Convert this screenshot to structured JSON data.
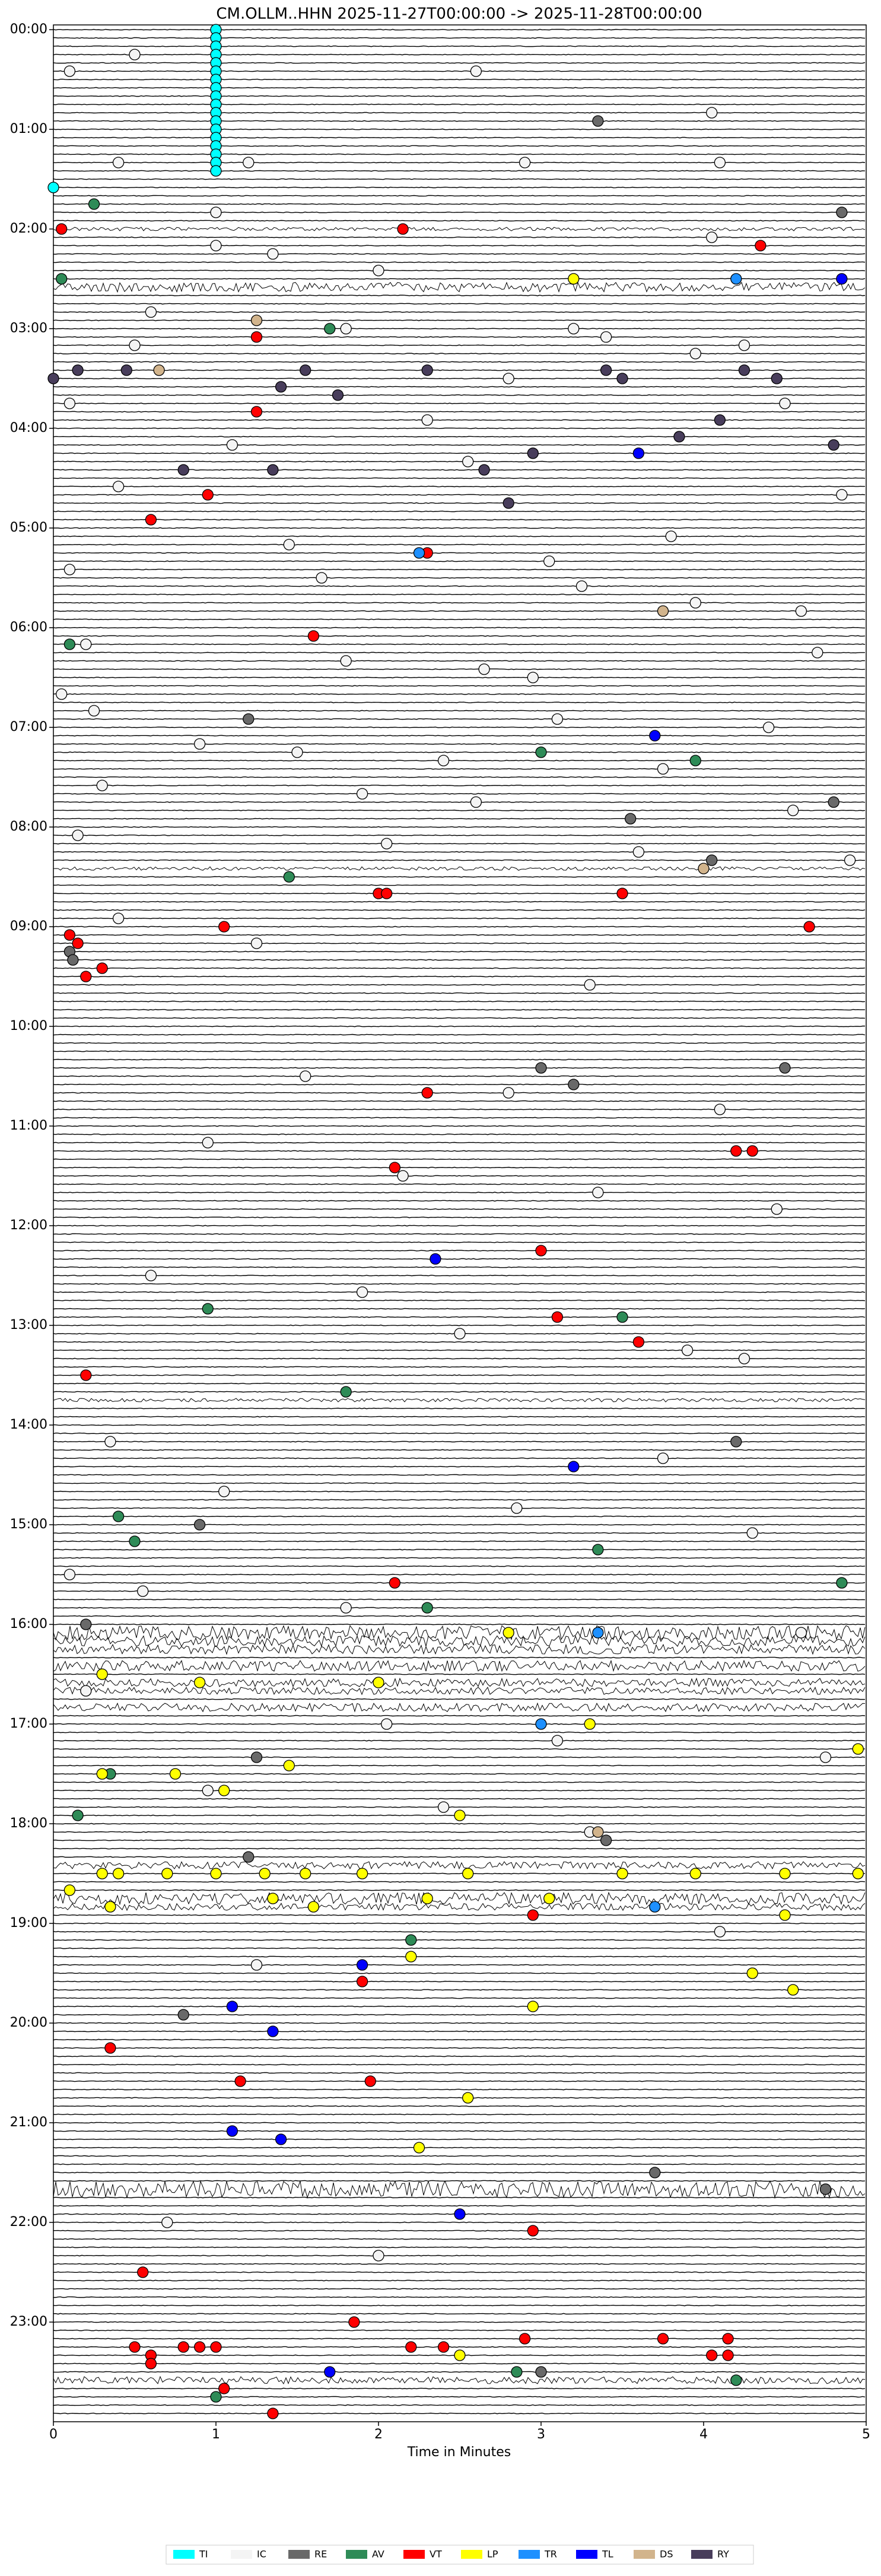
{
  "chart_data": {
    "type": "dayplot",
    "title": "CM.OLLM..HHN  2025-11-27T00:00:00 -> 2025-11-28T00:00:00",
    "xlabel": "Time in Minutes",
    "xlim": [
      0,
      5
    ],
    "xticks": [
      0,
      1,
      2,
      3,
      4,
      5
    ],
    "ylim": [
      0,
      288
    ],
    "yticks": [
      {
        "value": 0,
        "label": "00:00"
      },
      {
        "value": 12,
        "label": "01:00"
      },
      {
        "value": 24,
        "label": "02:00"
      },
      {
        "value": 36,
        "label": "03:00"
      },
      {
        "value": 48,
        "label": "04:00"
      },
      {
        "value": 60,
        "label": "05:00"
      },
      {
        "value": 72,
        "label": "06:00"
      },
      {
        "value": 84,
        "label": "07:00"
      },
      {
        "value": 96,
        "label": "08:00"
      },
      {
        "value": 108,
        "label": "09:00"
      },
      {
        "value": 120,
        "label": "10:00"
      },
      {
        "value": 132,
        "label": "11:00"
      },
      {
        "value": 144,
        "label": "12:00"
      },
      {
        "value": 156,
        "label": "13:00"
      },
      {
        "value": 168,
        "label": "14:00"
      },
      {
        "value": 180,
        "label": "15:00"
      },
      {
        "value": 192,
        "label": "16:00"
      },
      {
        "value": 204,
        "label": "17:00"
      },
      {
        "value": 216,
        "label": "18:00"
      },
      {
        "value": 228,
        "label": "19:00"
      },
      {
        "value": 240,
        "label": "20:00"
      },
      {
        "value": 252,
        "label": "21:00"
      },
      {
        "value": 264,
        "label": "22:00"
      },
      {
        "value": 276,
        "label": "23:00"
      }
    ],
    "series": [
      {
        "name": "TI",
        "color": "#00ffff",
        "x": [
          1,
          1,
          1,
          1,
          1,
          1,
          1,
          1,
          1,
          1,
          1,
          1,
          1,
          1,
          1,
          1,
          1,
          1,
          0
        ],
        "values": [
          0,
          1,
          2,
          3,
          4,
          5,
          6,
          7,
          8,
          9,
          10,
          11,
          12,
          13,
          14,
          15,
          16,
          17,
          19
        ]
      },
      {
        "name": "IC",
        "color": "#f4f4f4",
        "x": [
          0.5,
          0.1,
          2.6,
          4.05,
          0.4,
          1.2,
          2.9,
          4.1,
          1.0,
          4.05,
          1.0,
          1.35,
          2.0,
          0.6,
          3.2,
          3.4,
          1.8,
          0.5,
          4.25,
          3.95,
          2.8,
          0.1,
          4.5,
          2.3,
          1.1,
          2.55,
          0.4,
          4.85,
          3.8,
          1.45,
          3.05,
          0.1,
          1.65,
          3.25,
          3.95,
          4.6,
          0.2,
          1.8,
          2.65,
          2.95,
          4.7,
          0.05,
          0.25,
          3.1,
          4.4,
          0.9,
          1.5,
          2.4,
          3.75,
          0.3,
          1.9,
          2.6,
          4.55,
          0.15,
          2.05,
          3.6,
          4.9,
          0.4,
          1.25,
          3.3,
          1.55,
          2.8,
          4.1,
          0.95,
          2.15,
          3.35,
          4.45,
          0.6,
          1.9,
          2.5,
          3.9,
          4.25,
          0.35,
          3.75,
          1.05,
          2.85,
          4.3,
          0.1,
          0.55,
          1.8,
          4.6,
          0.2,
          2.05,
          3.1,
          4.75,
          0.95,
          2.4,
          3.3,
          4.1,
          1.25,
          0.7,
          2.0
        ],
        "values": [
          3,
          5,
          5,
          10,
          16,
          16,
          16,
          16,
          22,
          25,
          26,
          27,
          29,
          34,
          36,
          37,
          36,
          38,
          38,
          39,
          42,
          45,
          45,
          47,
          50,
          52,
          55,
          56,
          61,
          62,
          64,
          65,
          66,
          67,
          69,
          70,
          74,
          76,
          77,
          78,
          75,
          80,
          82,
          83,
          84,
          86,
          87,
          88,
          89,
          91,
          92,
          93,
          94,
          97,
          98,
          99,
          100,
          107,
          110,
          115,
          126,
          128,
          130,
          134,
          138,
          140,
          142,
          150,
          152,
          157,
          159,
          160,
          170,
          172,
          176,
          178,
          181,
          186,
          188,
          190,
          193,
          200,
          204,
          206,
          208,
          212,
          214,
          217,
          229,
          233,
          264,
          268
        ]
      },
      {
        "name": "RE",
        "color": "#696969",
        "x": [
          3.35,
          4.85,
          0.1,
          0.12,
          4.8,
          3.55,
          1.2,
          4.05,
          3.0,
          3.2,
          4.5,
          3.4,
          1.2,
          0.8,
          0.9,
          4.2,
          4.75,
          3.0,
          1.25,
          0.2,
          3.7
        ],
        "values": [
          11,
          22,
          111,
          112,
          93,
          95,
          83,
          100,
          125,
          127,
          125,
          218,
          220,
          239,
          180,
          170,
          260,
          282,
          208,
          192,
          258
        ]
      },
      {
        "name": "AV",
        "color": "#2e8b57",
        "x": [
          0.25,
          0.05,
          1.7,
          0.1,
          3.0,
          3.95,
          1.45,
          0.95,
          3.5,
          1.8,
          0.4,
          0.5,
          3.35,
          4.85,
          2.3,
          0.15,
          0.35,
          2.2,
          4.2,
          2.85,
          1.0
        ],
        "values": [
          21,
          30,
          36,
          74,
          87,
          88,
          102,
          154,
          155,
          164,
          179,
          182,
          183,
          187,
          190,
          215,
          210,
          230,
          283,
          282,
          285
        ]
      },
      {
        "name": "VT",
        "color": "#ff0000",
        "x": [
          0.05,
          2.15,
          4.35,
          1.25,
          1.25,
          0.6,
          0.95,
          2.3,
          1.6,
          2.0,
          2.05,
          0.1,
          0.15,
          0.2,
          0.3,
          1.05,
          3.5,
          4.65,
          2.3,
          2.1,
          4.2,
          4.3,
          3.0,
          3.1,
          3.6,
          0.2,
          2.1,
          2.95,
          0.35,
          1.15,
          2.95,
          0.55,
          1.85,
          0.5,
          0.6,
          0.6,
          0.8,
          0.9,
          1.0,
          1.05,
          1.35,
          2.2,
          2.4,
          2.9,
          3.75,
          4.15,
          4.05,
          4.15,
          1.95,
          1.9
        ],
        "values": [
          24,
          24,
          26,
          37,
          46,
          59,
          56,
          63,
          73,
          104,
          104,
          109,
          110,
          114,
          113,
          108,
          104,
          108,
          128,
          137,
          135,
          135,
          147,
          155,
          158,
          162,
          187,
          227,
          243,
          247,
          265,
          270,
          276,
          279,
          280,
          281,
          279,
          279,
          279,
          284,
          287,
          279,
          279,
          278,
          278,
          278,
          280,
          280,
          247,
          235
        ]
      },
      {
        "name": "LP",
        "color": "#ffff00",
        "x": [
          3.2,
          2.8,
          3.3,
          0.3,
          0.9,
          2.0,
          0.3,
          0.75,
          1.05,
          0.3,
          0.4,
          0.7,
          1.0,
          1.3,
          1.55,
          1.9,
          2.55,
          3.5,
          3.95,
          4.5,
          4.95,
          0.1,
          1.6,
          0.35,
          1.35,
          2.3,
          3.05,
          4.5,
          2.2,
          4.3,
          4.55,
          1.45,
          2.5,
          2.95,
          2.55,
          2.25,
          2.5,
          4.95
        ],
        "values": [
          30,
          193,
          204,
          198,
          199,
          199,
          210,
          210,
          212,
          222,
          222,
          222,
          222,
          222,
          222,
          222,
          222,
          222,
          222,
          222,
          222,
          224,
          226,
          226,
          225,
          225,
          225,
          227,
          232,
          234,
          236,
          209,
          215,
          238,
          249,
          255,
          280,
          207
        ]
      },
      {
        "name": "TR",
        "color": "#1e90ff",
        "x": [
          4.2,
          2.25,
          3.35,
          3.0,
          3.7
        ],
        "values": [
          30,
          63,
          193,
          204,
          226
        ]
      },
      {
        "name": "TL",
        "color": "#0000ff",
        "x": [
          4.85,
          3.6,
          3.7,
          2.35,
          3.2,
          1.9,
          1.1,
          1.35,
          1.1,
          1.4,
          2.5,
          1.7
        ],
        "values": [
          30,
          51,
          85,
          148,
          173,
          233,
          238,
          241,
          253,
          254,
          263,
          282
        ]
      },
      {
        "name": "DS",
        "color": "#d2b48c",
        "x": [
          1.25,
          0.65,
          3.35,
          4.0,
          3.75
        ],
        "values": [
          35,
          41,
          217,
          101,
          70
        ]
      },
      {
        "name": "RY",
        "color": "#483d5b",
        "x": [
          0.0,
          0.15,
          0.45,
          1.4,
          1.55,
          2.3,
          3.4,
          3.5,
          4.25,
          4.45,
          4.1,
          3.85,
          4.8,
          1.35,
          2.95,
          2.8,
          2.65,
          0.8,
          1.75
        ],
        "values": [
          42,
          41,
          41,
          43,
          41,
          41,
          41,
          42,
          41,
          42,
          47,
          49,
          50,
          53,
          51,
          57,
          53,
          53,
          44
        ]
      }
    ]
  }
}
